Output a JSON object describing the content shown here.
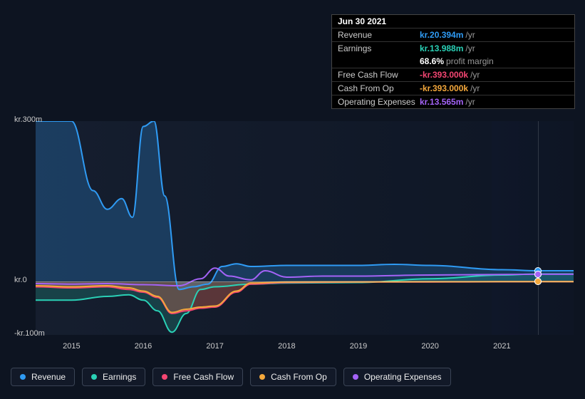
{
  "tooltip": {
    "date": "Jun 30 2021",
    "rows": [
      {
        "label": "Revenue",
        "value": "kr.20.394m",
        "suffix": "/yr",
        "color": "#2f9bf4"
      },
      {
        "label": "Earnings",
        "value": "kr.13.988m",
        "suffix": "/yr",
        "color": "#2ad1b6",
        "sub": {
          "value": "68.6%",
          "label": "profit margin"
        }
      },
      {
        "label": "Free Cash Flow",
        "value": "-kr.393.000k",
        "suffix": "/yr",
        "color": "#f44672"
      },
      {
        "label": "Cash From Op",
        "value": "-kr.393.000k",
        "suffix": "/yr",
        "color": "#f4a83c"
      },
      {
        "label": "Operating Expenses",
        "value": "kr.13.565m",
        "suffix": "/yr",
        "color": "#a463f7"
      }
    ]
  },
  "chart": {
    "type": "line",
    "background_color": "#0d1421",
    "grid_color": "rgba(255,255,255,0.15)",
    "text_color": "#cccccc",
    "label_fontsize": 11,
    "y_axis": {
      "min": -100,
      "max": 300,
      "ticks": [
        {
          "v": 300,
          "label": "kr.300m"
        },
        {
          "v": 0,
          "label": "kr.0"
        },
        {
          "v": -100,
          "label": "-kr.100m"
        }
      ]
    },
    "x_axis": {
      "min": 2014.5,
      "max": 2022.0,
      "ticks": [
        2015,
        2016,
        2017,
        2018,
        2019,
        2020,
        2021
      ],
      "vline": 2021.5
    },
    "series": {
      "revenue": {
        "label": "Revenue",
        "color": "#2f9bf4",
        "fill": "rgba(47,155,244,0.25)",
        "width": 2,
        "data": [
          [
            2014.5,
            300
          ],
          [
            2015.0,
            300
          ],
          [
            2015.3,
            170
          ],
          [
            2015.5,
            135
          ],
          [
            2015.7,
            155
          ],
          [
            2015.85,
            120
          ],
          [
            2016.0,
            290
          ],
          [
            2016.15,
            300
          ],
          [
            2016.3,
            160
          ],
          [
            2016.5,
            -15
          ],
          [
            2016.7,
            -10
          ],
          [
            2016.9,
            -5
          ],
          [
            2017.1,
            28
          ],
          [
            2017.3,
            33
          ],
          [
            2017.5,
            28
          ],
          [
            2018.0,
            30
          ],
          [
            2019.0,
            30
          ],
          [
            2019.5,
            32
          ],
          [
            2020.0,
            30
          ],
          [
            2021.0,
            22
          ],
          [
            2021.5,
            20
          ],
          [
            2022.0,
            20
          ]
        ]
      },
      "earnings": {
        "label": "Earnings",
        "color": "#2ad1b6",
        "fill": "rgba(42,209,182,0.2)",
        "width": 2,
        "data": [
          [
            2014.5,
            -35
          ],
          [
            2015.0,
            -35
          ],
          [
            2015.5,
            -28
          ],
          [
            2015.8,
            -25
          ],
          [
            2016.0,
            -35
          ],
          [
            2016.2,
            -55
          ],
          [
            2016.4,
            -95
          ],
          [
            2016.6,
            -60
          ],
          [
            2016.8,
            -15
          ],
          [
            2017.0,
            -10
          ],
          [
            2017.5,
            -5
          ],
          [
            2018.0,
            -3
          ],
          [
            2019.0,
            -2
          ],
          [
            2020.0,
            5
          ],
          [
            2021.0,
            12
          ],
          [
            2021.5,
            14
          ],
          [
            2022.0,
            14
          ]
        ]
      },
      "free_cash_flow": {
        "label": "Free Cash Flow",
        "color": "#f44672",
        "fill": "rgba(244,70,114,0.2)",
        "width": 2,
        "data": [
          [
            2014.5,
            -10
          ],
          [
            2015.0,
            -12
          ],
          [
            2015.5,
            -10
          ],
          [
            2015.8,
            -15
          ],
          [
            2016.0,
            -20
          ],
          [
            2016.2,
            -30
          ],
          [
            2016.4,
            -60
          ],
          [
            2016.6,
            -55
          ],
          [
            2016.8,
            -50
          ],
          [
            2017.0,
            -48
          ],
          [
            2017.3,
            -20
          ],
          [
            2017.5,
            -5
          ],
          [
            2018.0,
            -2
          ],
          [
            2019.0,
            -1
          ],
          [
            2020.0,
            -1
          ],
          [
            2021.0,
            -0.5
          ],
          [
            2021.5,
            -0.4
          ],
          [
            2022.0,
            -0.4
          ]
        ]
      },
      "cash_from_op": {
        "label": "Cash From Op",
        "color": "#f4a83c",
        "fill": "rgba(244,168,60,0.15)",
        "width": 2,
        "data": [
          [
            2014.5,
            -8
          ],
          [
            2015.0,
            -10
          ],
          [
            2015.5,
            -8
          ],
          [
            2015.8,
            -12
          ],
          [
            2016.0,
            -18
          ],
          [
            2016.2,
            -28
          ],
          [
            2016.4,
            -58
          ],
          [
            2016.6,
            -52
          ],
          [
            2016.8,
            -48
          ],
          [
            2017.0,
            -46
          ],
          [
            2017.3,
            -18
          ],
          [
            2017.5,
            -3
          ],
          [
            2018.0,
            -1
          ],
          [
            2019.0,
            -0.8
          ],
          [
            2020.0,
            -0.5
          ],
          [
            2021.0,
            -0.4
          ],
          [
            2021.5,
            -0.4
          ],
          [
            2022.0,
            -0.4
          ]
        ]
      },
      "operating_expenses": {
        "label": "Operating Expenses",
        "color": "#a463f7",
        "fill": "none",
        "width": 2,
        "data": [
          [
            2014.5,
            -4
          ],
          [
            2015.0,
            -5
          ],
          [
            2015.5,
            -4
          ],
          [
            2016.0,
            -6
          ],
          [
            2016.5,
            -8
          ],
          [
            2016.8,
            5
          ],
          [
            2017.0,
            25
          ],
          [
            2017.2,
            10
          ],
          [
            2017.5,
            3
          ],
          [
            2017.7,
            20
          ],
          [
            2018.0,
            8
          ],
          [
            2018.5,
            10
          ],
          [
            2019.0,
            10
          ],
          [
            2020.0,
            12
          ],
          [
            2021.0,
            13
          ],
          [
            2021.5,
            13.5
          ],
          [
            2022.0,
            13.5
          ]
        ]
      }
    },
    "legend_order": [
      "revenue",
      "earnings",
      "free_cash_flow",
      "cash_from_op",
      "operating_expenses"
    ],
    "markers_x": 2021.5
  }
}
